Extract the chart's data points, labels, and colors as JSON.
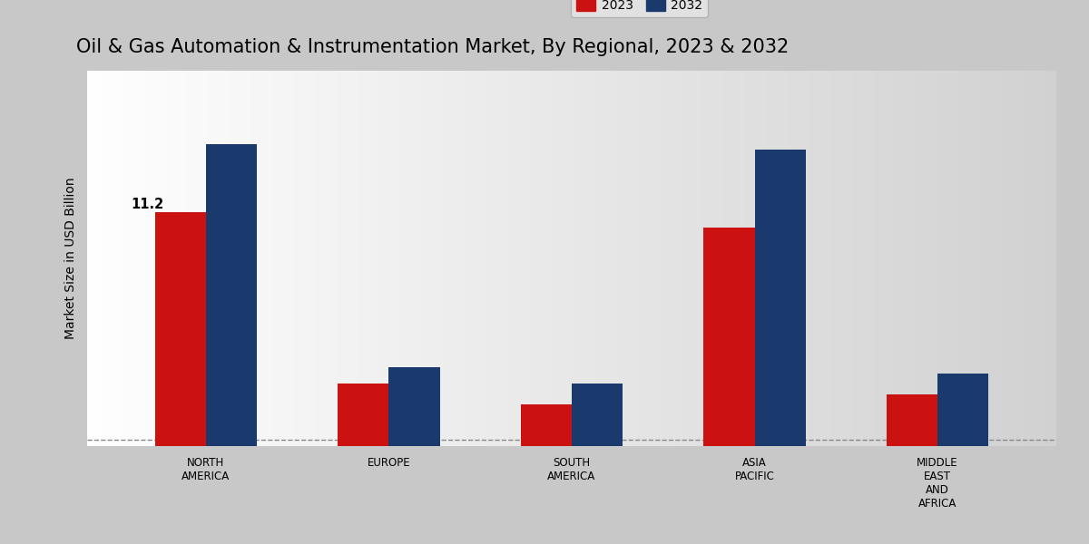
{
  "title": "Oil & Gas Automation & Instrumentation Market, By Regional, 2023 & 2032",
  "ylabel": "Market Size in USD Billion",
  "categories": [
    "NORTH\nAMERICA",
    "EUROPE",
    "SOUTH\nAMERICA",
    "ASIA\nPACIFIC",
    "MIDDLE\nEAST\nAND\nAFRICA"
  ],
  "values_2023": [
    11.2,
    3.0,
    2.0,
    10.5,
    2.5
  ],
  "values_2032": [
    14.5,
    3.8,
    3.0,
    14.2,
    3.5
  ],
  "color_2023": "#cc1111",
  "color_2032": "#1a3a6e",
  "annotation_text": "11.2",
  "annotation_region": 0,
  "bar_width": 0.28,
  "legend_labels": [
    "2023",
    "2032"
  ],
  "title_fontsize": 15,
  "ylabel_fontsize": 10,
  "tick_fontsize": 8.5,
  "legend_fontsize": 10,
  "ylim_max": 18,
  "dashed_line_y": 0.3,
  "bg_left": "#ffffff",
  "bg_right": "#d0d0d0",
  "bottom_bar_color": "#cc1111",
  "bottom_bar_height": 0.022
}
